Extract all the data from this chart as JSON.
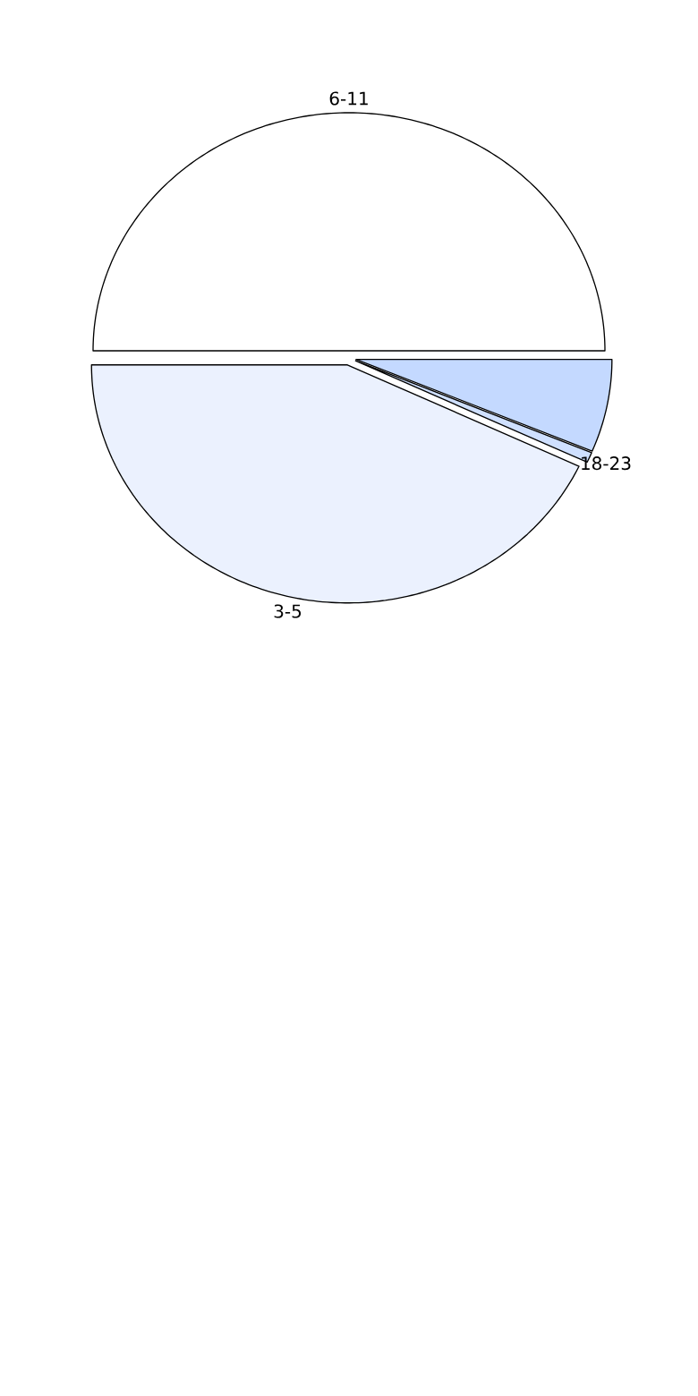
{
  "chart_data": {
    "type": "pie",
    "categories": [
      "6-11",
      "3-5",
      "18-23",
      null
    ],
    "values": [
      50,
      43,
      0.7,
      6.3
    ],
    "colors": [
      "#ffffff",
      "#ebf1fe",
      "#cfe0ff",
      "#c4d9ff"
    ]
  }
}
